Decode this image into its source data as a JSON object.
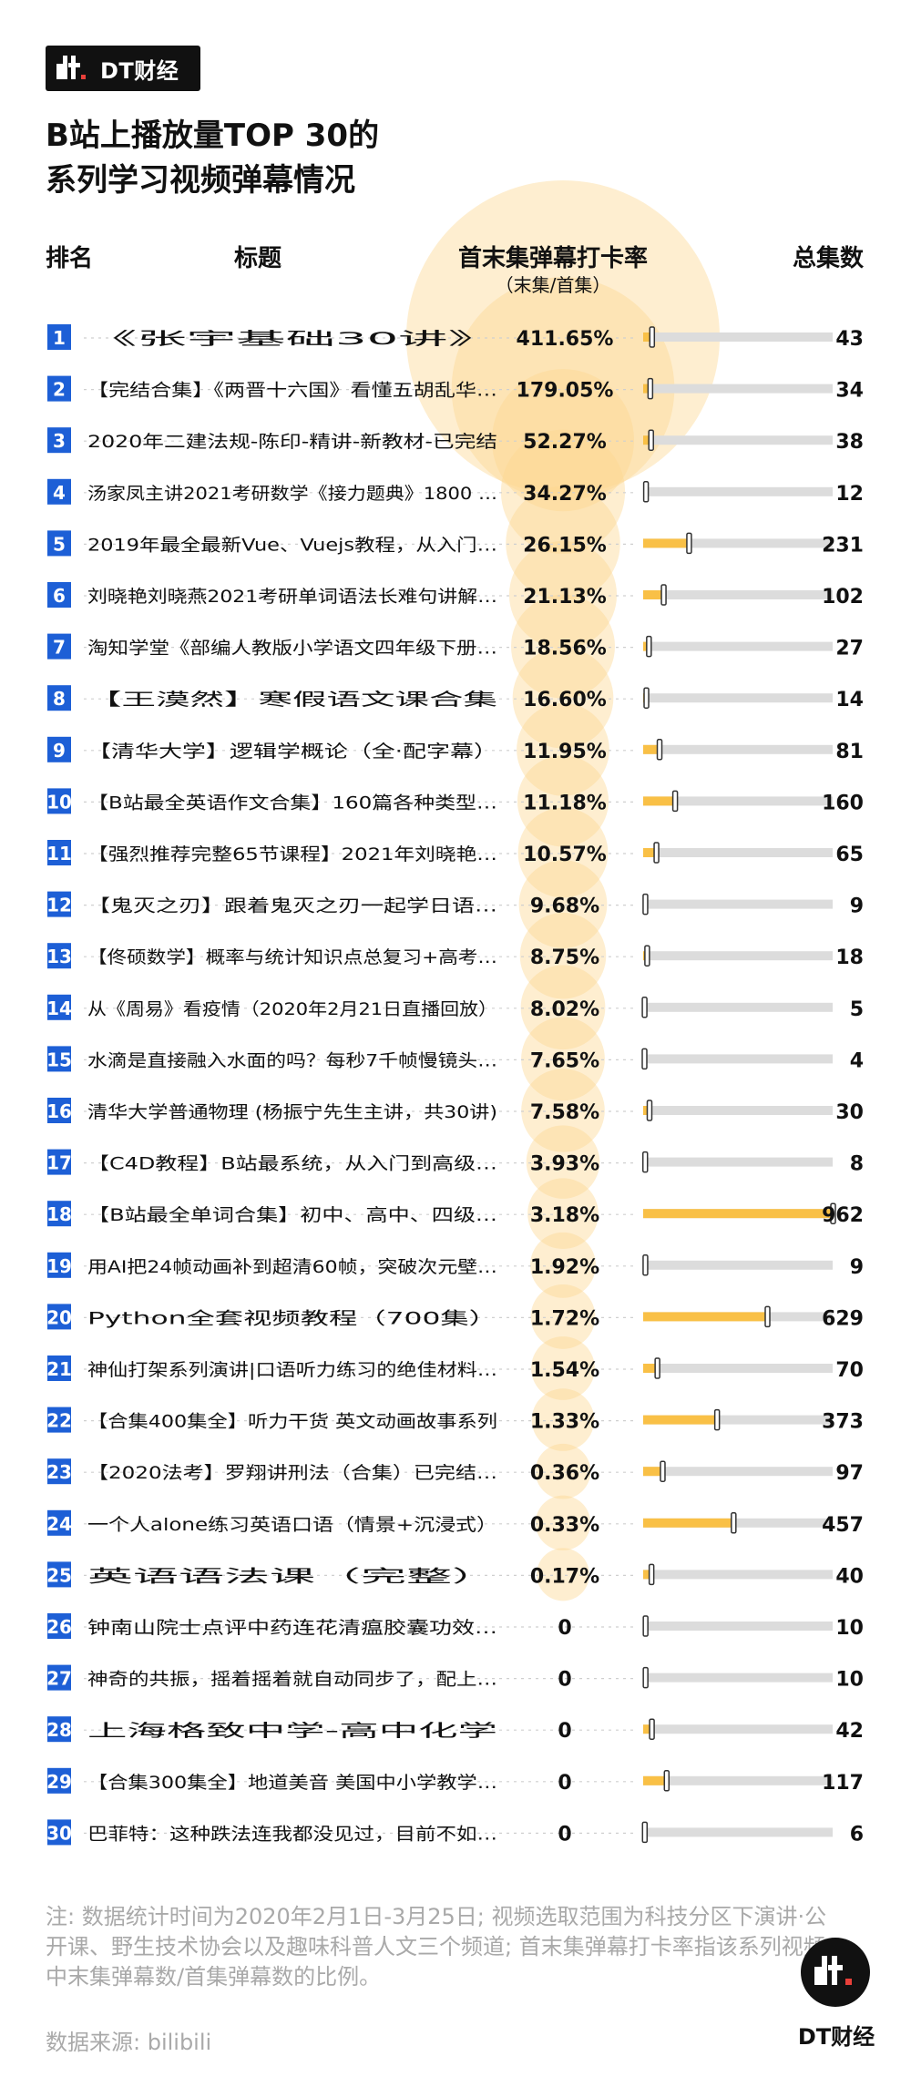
{
  "brand": {
    "name": "DT财经"
  },
  "title": {
    "line1": "B站上播放量TOP 30的",
    "line2": "系列学习视频弹幕情况"
  },
  "colors": {
    "accent": "#f9c046",
    "bubble": "#fcd690",
    "bar_bg": "#dcdcdc",
    "rank_bg": "#1d5fd6",
    "grey_text": "#a9a9a9"
  },
  "chart_data": {
    "type": "table",
    "columns": {
      "rank": "排名",
      "title": "标题",
      "ratio": "首末集弹幕打卡率",
      "ratio_sub": "（末集/首集）",
      "episodes": "总集数"
    },
    "episodes_axis_max": 962,
    "rows": [
      {
        "rank": "1",
        "title": "《张宇基础30讲》",
        "ratio_label": "411.65%",
        "ratio": 411.65,
        "episodes": 43
      },
      {
        "rank": "2",
        "title": "【完结合集】《两晋十六国》看懂五胡乱华…",
        "ratio_label": "179.05%",
        "ratio": 179.05,
        "episodes": 34
      },
      {
        "rank": "3",
        "title": "2020年二建法规-陈印-精讲-新教材-已完结",
        "ratio_label": "52.27%",
        "ratio": 52.27,
        "episodes": 38
      },
      {
        "rank": "4",
        "title": "汤家凤主讲2021考研数学《接力题典》1800 …",
        "ratio_label": "34.27%",
        "ratio": 34.27,
        "episodes": 12
      },
      {
        "rank": "5",
        "title": "2019年最全最新Vue、Vuejs教程，从入门…",
        "ratio_label": "26.15%",
        "ratio": 26.15,
        "episodes": 231
      },
      {
        "rank": "6",
        "title": "刘晓艳刘晓燕2021考研单词语法长难句讲解…",
        "ratio_label": "21.13%",
        "ratio": 21.13,
        "episodes": 102
      },
      {
        "rank": "7",
        "title": "淘知学堂《部编人教版小学语文四年级下册…",
        "ratio_label": "18.56%",
        "ratio": 18.56,
        "episodes": 27
      },
      {
        "rank": "8",
        "title": "【王漠然】寒假语文课合集",
        "ratio_label": "16.60%",
        "ratio": 16.6,
        "episodes": 14
      },
      {
        "rank": "9",
        "title": "【清华大学】逻辑学概论（全·配字幕）",
        "ratio_label": "11.95%",
        "ratio": 11.95,
        "episodes": 81
      },
      {
        "rank": "10",
        "title": "【B站最全英语作文合集】160篇各种类型…",
        "ratio_label": "11.18%",
        "ratio": 11.18,
        "episodes": 160
      },
      {
        "rank": "11",
        "title": "【强烈推荐完整65节课程】2021年刘晓艳…",
        "ratio_label": "10.57%",
        "ratio": 10.57,
        "episodes": 65
      },
      {
        "rank": "12",
        "title": "【鬼灭之刃】跟着鬼灭之刃一起学日语…",
        "ratio_label": "9.68%",
        "ratio": 9.68,
        "episodes": 9
      },
      {
        "rank": "13",
        "title": "【佟硕数学】概率与统计知识点总复习+高考…",
        "ratio_label": "8.75%",
        "ratio": 8.75,
        "episodes": 18
      },
      {
        "rank": "14",
        "title": "从《周易》看疫情（2020年2月21日直播回放）",
        "ratio_label": "8.02%",
        "ratio": 8.02,
        "episodes": 5
      },
      {
        "rank": "15",
        "title": "水滴是直接融入水面的吗？每秒7千帧慢镜头…",
        "ratio_label": "7.65%",
        "ratio": 7.65,
        "episodes": 4
      },
      {
        "rank": "16",
        "title": "清华大学普通物理 (杨振宁先生主讲，共30讲)",
        "ratio_label": "7.58%",
        "ratio": 7.58,
        "episodes": 30
      },
      {
        "rank": "17",
        "title": "【C4D教程】B站最系统，从入门到高级…",
        "ratio_label": "3.93%",
        "ratio": 3.93,
        "episodes": 8
      },
      {
        "rank": "18",
        "title": "【B站最全单词合集】初中、高中、四级…",
        "ratio_label": "3.18%",
        "ratio": 3.18,
        "episodes": 962
      },
      {
        "rank": "19",
        "title": "用AI把24帧动画补到超清60帧，突破次元壁…",
        "ratio_label": "1.92%",
        "ratio": 1.92,
        "episodes": 9
      },
      {
        "rank": "20",
        "title": "Python全套视频教程（700集）",
        "ratio_label": "1.72%",
        "ratio": 1.72,
        "episodes": 629
      },
      {
        "rank": "21",
        "title": "神仙打架系列演讲|口语听力练习的绝佳材料…",
        "ratio_label": "1.54%",
        "ratio": 1.54,
        "episodes": 70
      },
      {
        "rank": "22",
        "title": "【合集400集全】听力干货 英文动画故事系列",
        "ratio_label": "1.33%",
        "ratio": 1.33,
        "episodes": 373
      },
      {
        "rank": "23",
        "title": "【2020法考】罗翔讲刑法（合集）已完结…",
        "ratio_label": "0.36%",
        "ratio": 0.36,
        "episodes": 97
      },
      {
        "rank": "24",
        "title": "一个人alone练习英语口语（情景+沉浸式）",
        "ratio_label": "0.33%",
        "ratio": 0.33,
        "episodes": 457
      },
      {
        "rank": "25",
        "title": "英语语法课（完整）",
        "ratio_label": "0.17%",
        "ratio": 0.17,
        "episodes": 40
      },
      {
        "rank": "26",
        "title": "钟南山院士点评中药连花清瘟胶囊功效…",
        "ratio_label": "0",
        "ratio": 0,
        "episodes": 10
      },
      {
        "rank": "27",
        "title": "神奇的共振，摇着摇着就自动同步了，配上…",
        "ratio_label": "0",
        "ratio": 0,
        "episodes": 10
      },
      {
        "rank": "28",
        "title": "上海格致中学-高中化学",
        "ratio_label": "0",
        "ratio": 0,
        "episodes": 42
      },
      {
        "rank": "29",
        "title": "【合集300集全】地道美音 美国中小学教学…",
        "ratio_label": "0",
        "ratio": 0,
        "episodes": 117
      },
      {
        "rank": "30",
        "title": "巴菲特：这种跌法连我都没见过，目前不如…",
        "ratio_label": "0",
        "ratio": 0,
        "episodes": 6
      }
    ]
  },
  "note": "注: 数据统计时间为2020年2月1日-3月25日; 视频选取范围为科技分区下演讲·公开课、野生技术协会以及趣味科普人文三个频道; 首末集弹幕打卡率指该系列视频中末集弹幕数/首集弹幕数的比例。",
  "source": "数据来源: bilibili",
  "corner_brand": "DT财经"
}
